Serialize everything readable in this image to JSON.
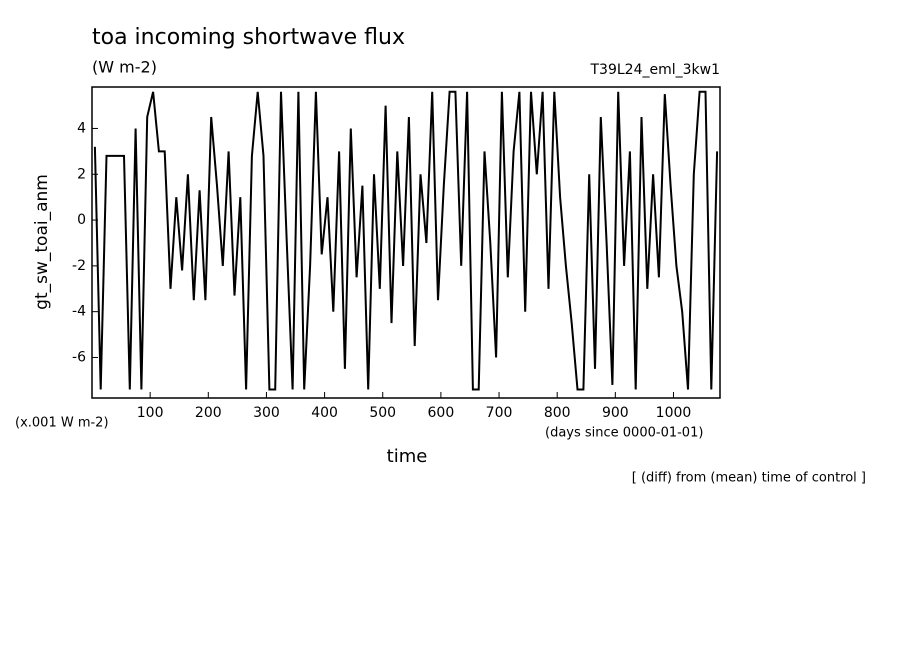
{
  "chart_data": {
    "type": "line",
    "title": "toa incoming shortwave flux",
    "subtitle": "(W m-2)",
    "run_label": "T39L24_eml_3kw1",
    "y_label": "gt_sw_toai_anm",
    "y_scale_note": "(x.001 W m-2)",
    "x_units": "(days since 0000-01-01)",
    "x_label": "time",
    "footnote": "[ (diff) from (mean) time of control ]",
    "xlim": [
      0,
      1080
    ],
    "ylim": [
      -7.77,
      5.81
    ],
    "xticks": [
      100,
      200,
      300,
      400,
      500,
      600,
      700,
      800,
      900,
      1000
    ],
    "yticks": [
      -6,
      -4,
      -2,
      0,
      2,
      4
    ],
    "color": "#000000",
    "x": [
      5,
      15,
      25,
      35,
      45,
      55,
      65,
      75,
      85,
      95,
      105,
      115,
      125,
      135,
      145,
      155,
      165,
      175,
      185,
      195,
      205,
      215,
      225,
      235,
      245,
      255,
      265,
      275,
      285,
      295,
      305,
      315,
      325,
      335,
      345,
      355,
      365,
      375,
      385,
      395,
      405,
      415,
      425,
      435,
      445,
      455,
      465,
      475,
      485,
      495,
      505,
      515,
      525,
      535,
      545,
      555,
      565,
      575,
      585,
      595,
      605,
      615,
      625,
      635,
      645,
      655,
      665,
      675,
      685,
      695,
      705,
      715,
      725,
      735,
      745,
      755,
      765,
      775,
      785,
      795,
      805,
      815,
      825,
      835,
      845,
      855,
      865,
      875,
      885,
      895,
      905,
      915,
      925,
      935,
      945,
      955,
      965,
      975,
      985,
      995,
      1005,
      1015,
      1025,
      1035,
      1045,
      1055,
      1065,
      1075
    ],
    "values": [
      3.2,
      -7.4,
      2.8,
      2.8,
      2.8,
      2.8,
      -7.4,
      4.0,
      -7.4,
      4.5,
      5.6,
      3.0,
      3.0,
      -3.0,
      1.0,
      -2.2,
      2.0,
      -3.5,
      1.3,
      -3.5,
      4.5,
      1.5,
      -2.0,
      3.0,
      -3.3,
      1.0,
      -7.4,
      2.8,
      5.6,
      2.8,
      -7.4,
      -7.4,
      5.6,
      -1.0,
      -7.4,
      5.6,
      -7.4,
      -2.0,
      5.6,
      -1.5,
      1.0,
      -4.0,
      3.0,
      -6.5,
      4.0,
      -2.5,
      1.5,
      -7.4,
      2.0,
      -3.0,
      5.0,
      -4.5,
      3.0,
      -2.0,
      4.5,
      -5.5,
      2.0,
      -1.0,
      5.6,
      -3.5,
      1.5,
      5.6,
      5.6,
      -2.0,
      5.6,
      -7.4,
      -7.4,
      3.0,
      -1.0,
      -6.0,
      5.6,
      -2.5,
      3.0,
      5.6,
      -4.0,
      5.6,
      2.0,
      5.6,
      -3.0,
      5.6,
      1.0,
      -2.0,
      -4.5,
      -7.4,
      -7.4,
      2.0,
      -6.5,
      4.5,
      -1.0,
      -7.2,
      5.6,
      -2.0,
      3.0,
      -7.4,
      4.5,
      -3.0,
      2.0,
      -2.5,
      5.5,
      1.5,
      -2.0,
      -4.0,
      -7.4,
      2.0,
      5.6,
      5.6,
      -7.4,
      3.0
    ]
  }
}
